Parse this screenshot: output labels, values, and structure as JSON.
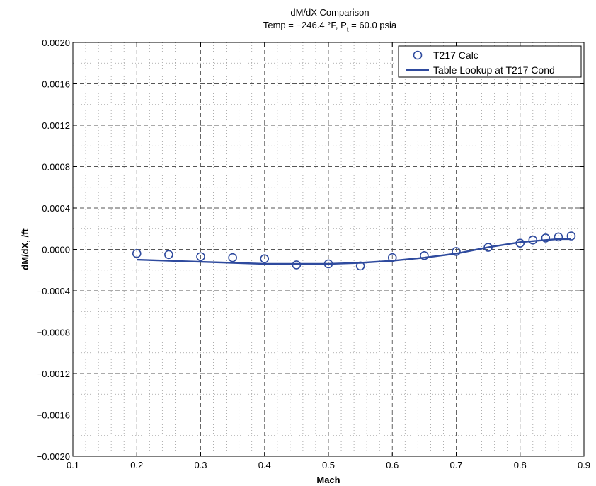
{
  "chart_data": {
    "type": "line",
    "title": "dM/dX Comparison",
    "subtitle": {
      "prefix": "Temp = −246.4 °F, P",
      "subscript": "t",
      "suffix": " = 60.0 psia"
    },
    "xlabel": "Mach",
    "ylabel": "dM/dX, /ft",
    "xlim": [
      0.1,
      0.9
    ],
    "ylim": [
      -0.002,
      0.002
    ],
    "x_ticks": [
      0.1,
      0.2,
      0.3,
      0.4,
      0.5,
      0.6,
      0.7,
      0.8,
      0.9
    ],
    "x_tick_labels": [
      "0.1",
      "0.2",
      "0.3",
      "0.4",
      "0.5",
      "0.6",
      "0.7",
      "0.8",
      "0.9"
    ],
    "y_ticks": [
      -0.002,
      -0.0016,
      -0.0012,
      -0.0008,
      -0.0004,
      0.0,
      0.0004,
      0.0008,
      0.0012,
      0.0016,
      0.002
    ],
    "y_tick_labels": [
      "−0.0020",
      "−0.0016",
      "−0.0012",
      "−0.0008",
      "−0.0004",
      "0.0000",
      "0.0004",
      "0.0008",
      "0.0012",
      "0.0016",
      "0.0020"
    ],
    "grid": true,
    "legend_position": "top-right",
    "colors": {
      "series": "#2e4a9e",
      "major_grid": "#555555",
      "minor_grid": "#9a9a9a"
    },
    "series": [
      {
        "name": "T217 Calc",
        "style": "markers",
        "marker": "circle",
        "x": [
          0.2,
          0.25,
          0.3,
          0.35,
          0.4,
          0.45,
          0.5,
          0.55,
          0.6,
          0.65,
          0.7,
          0.75,
          0.8,
          0.82,
          0.84,
          0.86,
          0.88
        ],
        "y": [
          -4e-05,
          -5e-05,
          -7e-05,
          -8e-05,
          -9e-05,
          -0.00015,
          -0.00014,
          -0.00016,
          -8e-05,
          -6e-05,
          -2e-05,
          2e-05,
          6e-05,
          9e-05,
          0.00011,
          0.00012,
          0.00013
        ]
      },
      {
        "name": "Table Lookup at T217 Cond",
        "style": "line",
        "x": [
          0.2,
          0.25,
          0.3,
          0.35,
          0.4,
          0.45,
          0.5,
          0.55,
          0.6,
          0.65,
          0.7,
          0.75,
          0.8,
          0.82,
          0.84,
          0.86,
          0.88
        ],
        "y": [
          -0.0001,
          -0.00011,
          -0.00012,
          -0.00013,
          -0.00014,
          -0.00014,
          -0.00014,
          -0.00013,
          -0.00011,
          -8e-05,
          -4e-05,
          2e-05,
          7e-05,
          8e-05,
          9e-05,
          0.0001,
          0.0001
        ]
      }
    ]
  }
}
